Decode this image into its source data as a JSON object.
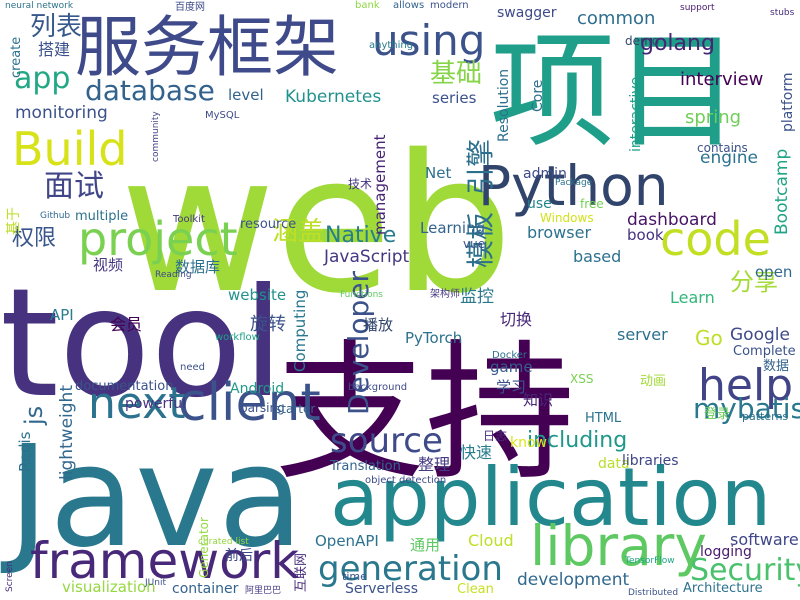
{
  "chart_data": {
    "type": "wordcloud",
    "words": [
      "web",
      "tool",
      "支持",
      "项目",
      "Java",
      "application",
      "服务框架",
      "Python",
      "framework",
      "library",
      "client",
      "next",
      "help",
      "code",
      "project",
      "Build",
      "using",
      "source",
      "generation",
      "Security",
      "database",
      "mybatis",
      "app",
      "面试",
      "基础",
      "golang",
      "including",
      "Native",
      "JavaScript",
      "Developer",
      "模板",
      "引擎",
      "js",
      "列表",
      "权限",
      "涵盖",
      "Kubernetes",
      "common",
      "interview",
      "spring",
      "engine",
      "dashboard",
      "Bootcamp",
      "分享",
      "open",
      "Google",
      "Go",
      "Learn",
      "server",
      "基于",
      "视频",
      "数据库",
      "website",
      "旋转",
      "会员",
      "API",
      "monitoring",
      "level",
      "management",
      "Computing",
      "workflow",
      "播放",
      "监控",
      "PyTorch",
      "切换",
      "Net",
      "技术",
      "admin",
      "use",
      "free",
      "browser",
      "book",
      "based",
      "vue",
      "Learning",
      "Windows",
      "game",
      "学习",
      "知识",
      "XSS",
      "HTML",
      "documentation",
      "powerful",
      "Android",
      "parsing",
      "starter",
      "lightweight",
      "Redis",
      "Translation",
      "整理",
      "快速",
      "data",
      "libraries",
      "know",
      "visualization",
      "container",
      "前后",
      "OpenAPI",
      "通用",
      "Cloud",
      "development",
      "software",
      "logging",
      "Architecture",
      "Serverless",
      "Clean",
      "time",
      "互联网",
      "Generator",
      "Resolution",
      "Core",
      "series",
      "interactive",
      "platform",
      "contains",
      "demo",
      "swagger",
      "anything",
      "create",
      "搭建",
      "Package",
      "数据",
      "Complete",
      "登录",
      "动画",
      "patterns",
      "日志",
      "object detection",
      "resource",
      "multiple",
      "Toolkit",
      "Github",
      "MySQL",
      "community",
      "stubs",
      "support",
      "bank",
      "allows",
      "modern",
      "neural network",
      "百度网",
      "Functions",
      "架构师",
      "Reading",
      "JUnit",
      "阿里巴巴",
      "Docker",
      "background",
      "TensorFlow",
      "Distributed",
      "curated list",
      "need",
      "Screen"
    ]
  }
}
